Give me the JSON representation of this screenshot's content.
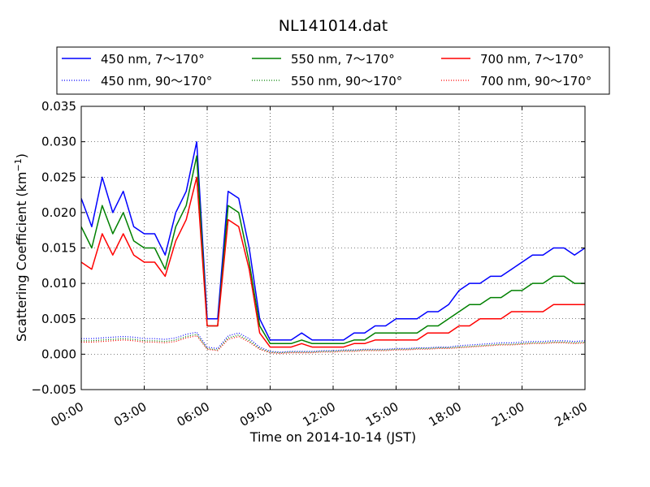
{
  "chart_data": {
    "type": "line",
    "title": "NL141014.dat",
    "xlabel": "Time on 2014-10-14 (JST)",
    "ylabel": "Scattering Coefficient (km",
    "ylabel_sup": "−1",
    "ylabel_end": ")",
    "x_unit": "hours",
    "xlim": [
      0,
      24
    ],
    "ylim": [
      -0.005,
      0.035
    ],
    "grid": true,
    "legend_position": "top",
    "x_ticks": [
      0,
      3,
      6,
      9,
      12,
      15,
      18,
      21,
      24
    ],
    "x_tick_labels": [
      "00:00",
      "03:00",
      "06:00",
      "09:00",
      "12:00",
      "15:00",
      "18:00",
      "21:00",
      "24:00"
    ],
    "y_ticks": [
      -0.005,
      0,
      0.005,
      0.01,
      0.015,
      0.02,
      0.025,
      0.03,
      0.035
    ],
    "y_tick_labels": [
      "−0.005",
      "0.000",
      "0.005",
      "0.010",
      "0.015",
      "0.020",
      "0.025",
      "0.030",
      "0.035"
    ],
    "x": [
      0,
      0.5,
      1,
      1.5,
      2,
      2.5,
      3,
      3.5,
      4,
      4.5,
      5,
      5.5,
      6,
      6.5,
      7,
      7.5,
      8,
      8.5,
      9,
      9.5,
      10,
      10.5,
      11,
      11.5,
      12,
      12.5,
      13,
      13.5,
      14,
      14.5,
      15,
      15.5,
      16,
      16.5,
      17,
      17.5,
      18,
      18.5,
      19,
      19.5,
      20,
      20.5,
      21,
      21.5,
      22,
      22.5,
      23,
      23.5,
      24
    ],
    "series": [
      {
        "name": "450 nm, 7～170°",
        "color": "#0000ff",
        "style": "solid",
        "values": [
          0.022,
          0.018,
          0.025,
          0.02,
          0.023,
          0.018,
          0.017,
          0.017,
          0.014,
          0.02,
          0.023,
          0.03,
          0.005,
          0.005,
          0.023,
          0.022,
          0.015,
          0.005,
          0.002,
          0.002,
          0.002,
          0.003,
          0.002,
          0.002,
          0.002,
          0.002,
          0.003,
          0.003,
          0.004,
          0.004,
          0.005,
          0.005,
          0.005,
          0.006,
          0.006,
          0.007,
          0.009,
          0.01,
          0.01,
          0.011,
          0.011,
          0.012,
          0.013,
          0.014,
          0.014,
          0.015,
          0.015,
          0.014,
          0.015
        ]
      },
      {
        "name": "450 nm, 90～170°",
        "color": "#0000ff",
        "style": "dotted",
        "values": [
          0.0022,
          0.0022,
          0.0023,
          0.0024,
          0.0025,
          0.0024,
          0.0022,
          0.0022,
          0.0021,
          0.0023,
          0.0028,
          0.0031,
          0.001,
          0.0008,
          0.0026,
          0.003,
          0.0022,
          0.001,
          0.0004,
          0.0003,
          0.0004,
          0.0004,
          0.0004,
          0.0005,
          0.0005,
          0.0006,
          0.0006,
          0.0007,
          0.0007,
          0.0007,
          0.0008,
          0.0008,
          0.0009,
          0.0009,
          0.001,
          0.001,
          0.0012,
          0.0013,
          0.0014,
          0.0015,
          0.0016,
          0.0016,
          0.0017,
          0.0018,
          0.0018,
          0.0019,
          0.0019,
          0.0018,
          0.0019
        ]
      },
      {
        "name": "550 nm, 7～170°",
        "color": "#008000",
        "style": "solid",
        "values": [
          0.018,
          0.015,
          0.021,
          0.017,
          0.02,
          0.016,
          0.015,
          0.015,
          0.012,
          0.018,
          0.021,
          0.028,
          0.004,
          0.004,
          0.021,
          0.02,
          0.013,
          0.004,
          0.0015,
          0.0015,
          0.0015,
          0.002,
          0.0015,
          0.0015,
          0.0015,
          0.0015,
          0.002,
          0.002,
          0.003,
          0.003,
          0.003,
          0.003,
          0.003,
          0.004,
          0.004,
          0.005,
          0.006,
          0.007,
          0.007,
          0.008,
          0.008,
          0.009,
          0.009,
          0.01,
          0.01,
          0.011,
          0.011,
          0.01,
          0.01
        ]
      },
      {
        "name": "550 nm, 90～170°",
        "color": "#008000",
        "style": "dotted",
        "values": [
          0.0019,
          0.0019,
          0.002,
          0.0021,
          0.0022,
          0.0021,
          0.0019,
          0.0019,
          0.0018,
          0.002,
          0.0025,
          0.0028,
          0.0008,
          0.0006,
          0.0023,
          0.0027,
          0.0019,
          0.0008,
          0.0003,
          0.0002,
          0.0003,
          0.0003,
          0.0003,
          0.0004,
          0.0004,
          0.0005,
          0.0005,
          0.0006,
          0.0006,
          0.0006,
          0.0007,
          0.0007,
          0.0008,
          0.0008,
          0.0009,
          0.0009,
          0.001,
          0.0011,
          0.0012,
          0.0013,
          0.0014,
          0.0014,
          0.0015,
          0.0016,
          0.0016,
          0.0017,
          0.0017,
          0.0016,
          0.0017
        ]
      },
      {
        "name": "700 nm, 7～170°",
        "color": "#ff0000",
        "style": "solid",
        "values": [
          0.013,
          0.012,
          0.017,
          0.014,
          0.017,
          0.014,
          0.013,
          0.013,
          0.011,
          0.016,
          0.019,
          0.025,
          0.004,
          0.004,
          0.019,
          0.018,
          0.012,
          0.003,
          0.001,
          0.001,
          0.001,
          0.0015,
          0.001,
          0.001,
          0.001,
          0.001,
          0.0015,
          0.0015,
          0.002,
          0.002,
          0.002,
          0.002,
          0.002,
          0.003,
          0.003,
          0.003,
          0.004,
          0.004,
          0.005,
          0.005,
          0.005,
          0.006,
          0.006,
          0.006,
          0.006,
          0.007,
          0.007,
          0.007,
          0.007
        ]
      },
      {
        "name": "700 nm, 90～170°",
        "color": "#ff0000",
        "style": "dotted",
        "values": [
          0.0017,
          0.0017,
          0.0018,
          0.0019,
          0.002,
          0.0019,
          0.0017,
          0.0017,
          0.0016,
          0.0018,
          0.0023,
          0.0026,
          0.0007,
          0.0005,
          0.0021,
          0.0025,
          0.0017,
          0.0007,
          0.0002,
          0.0001,
          0.0002,
          0.0002,
          0.0002,
          0.0003,
          0.0003,
          0.0004,
          0.0004,
          0.0005,
          0.0005,
          0.0005,
          0.0006,
          0.0006,
          0.0007,
          0.0007,
          0.0008,
          0.0008,
          0.0009,
          0.001,
          0.0011,
          0.0012,
          0.0013,
          0.0013,
          0.0014,
          0.0015,
          0.0015,
          0.0016,
          0.0016,
          0.0015,
          0.0016
        ]
      }
    ]
  }
}
